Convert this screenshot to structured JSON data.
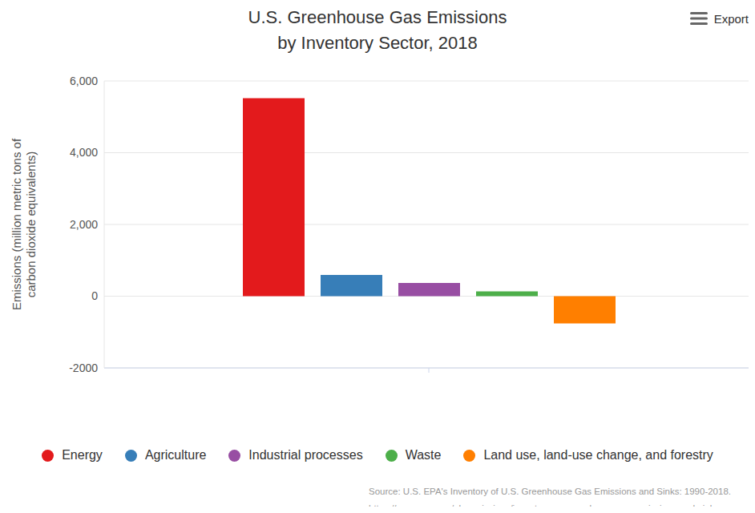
{
  "chart_data": {
    "type": "bar",
    "title": [
      "U.S. Greenhouse Gas Emissions",
      "by Inventory Sector, 2018"
    ],
    "ylabel": [
      "Emissions (million metric tons of",
      "carbon dioxide equivalents)"
    ],
    "categories": [
      null
    ],
    "series": [
      {
        "name": "Energy",
        "color": "#e31a1c",
        "values": [
          5520
        ]
      },
      {
        "name": "Agriculture",
        "color": "#377eb8",
        "values": [
          590
        ]
      },
      {
        "name": "Industrial processes",
        "color": "#984ea3",
        "values": [
          370
        ]
      },
      {
        "name": "Waste",
        "color": "#4daf4a",
        "values": [
          135
        ]
      },
      {
        "name": "Land use, land-use change, and forestry",
        "color": "#ff7f00",
        "values": [
          -760
        ]
      }
    ],
    "ylim": [
      -2000,
      6000
    ],
    "yticks": [
      -2000,
      0,
      {
        "value": 2000,
        "label": "2,000"
      },
      {
        "value": 4000,
        "label": "4,000"
      },
      {
        "value": 6000,
        "label": "6,000"
      }
    ],
    "grid": true,
    "legend": "bottom",
    "tick_labels": "y",
    "annotations": [
      "Source: U.S. EPA's Inventory of U.S. Greenhouse Gas Emissions and Sinks: 1990-2018.",
      "https://www.epa.gov/ghgemissions/inventory-us-greenhouse-gas-emissions-and-sinks"
    ],
    "export_label": "Export"
  }
}
